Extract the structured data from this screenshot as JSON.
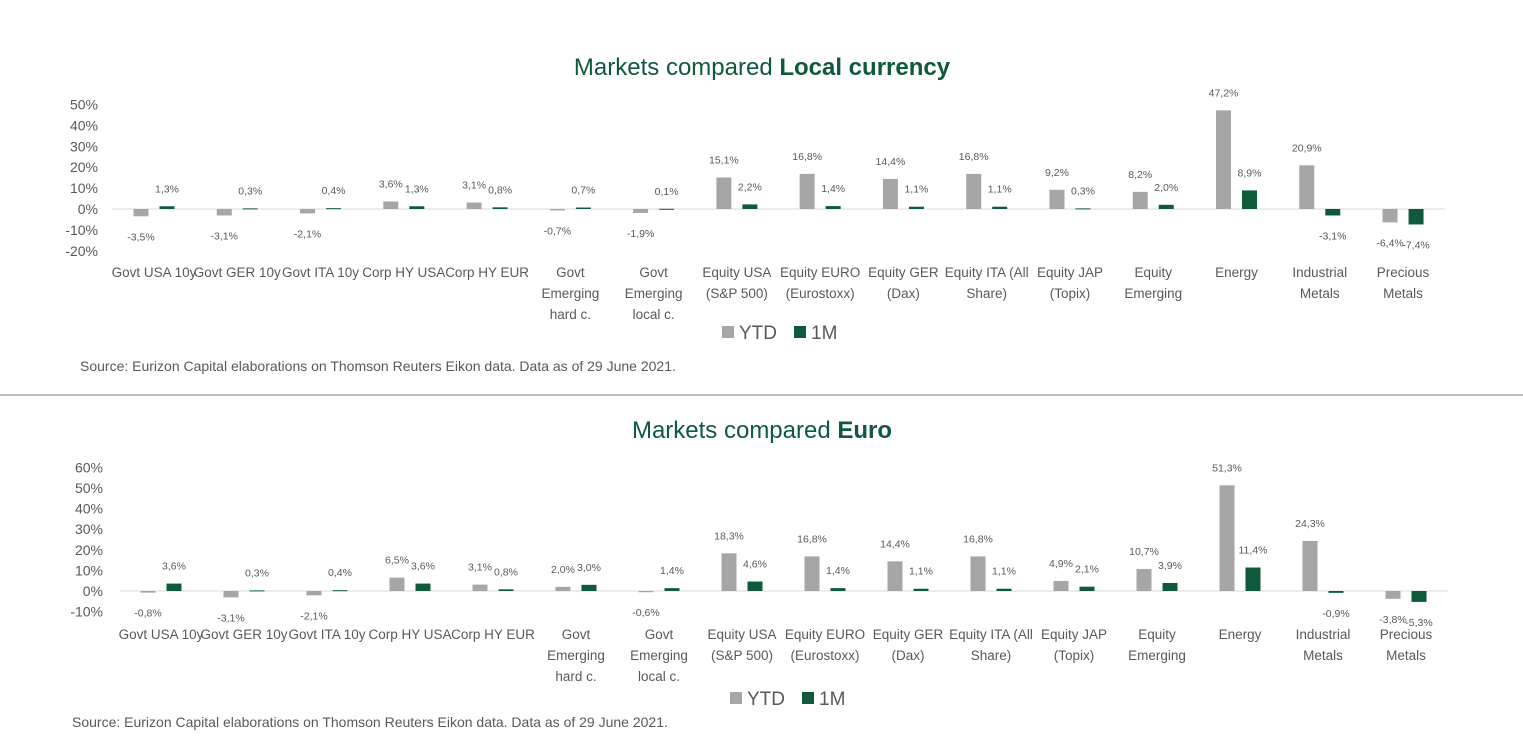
{
  "colors": {
    "ytd": "#a6a6a6",
    "m1": "#0e5a3a",
    "title": "#0e5a3a",
    "text": "#595959"
  },
  "chart_data": [
    {
      "type": "bar",
      "title_regular": "Markets compared ",
      "title_bold": "Local currency",
      "categories": [
        [
          "Govt USA 10y"
        ],
        [
          "Govt GER 10y"
        ],
        [
          "Govt ITA 10y"
        ],
        [
          "Corp HY USA"
        ],
        [
          "Corp HY EUR"
        ],
        [
          "Govt",
          "Emerging",
          "hard c."
        ],
        [
          "Govt",
          "Emerging",
          "local c."
        ],
        [
          "Equity USA",
          "(S&P 500)"
        ],
        [
          "Equity EURO",
          "(Eurostoxx)"
        ],
        [
          "Equity GER",
          "(Dax)"
        ],
        [
          "Equity ITA (All",
          "Share)"
        ],
        [
          "Equity JAP",
          "(Topix)"
        ],
        [
          "Equity",
          "Emerging"
        ],
        [
          "Energy"
        ],
        [
          "Industrial",
          "Metals"
        ],
        [
          "Precious",
          "Metals"
        ]
      ],
      "series": [
        {
          "name": "YTD",
          "values": [
            -3.5,
            -3.1,
            -2.1,
            3.6,
            3.1,
            -0.7,
            -1.9,
            15.1,
            16.8,
            14.4,
            16.8,
            9.2,
            8.2,
            47.2,
            20.9,
            -6.4
          ],
          "labels": [
            "-3,5%",
            "-3,1%",
            "-2,1%",
            "3,6%",
            "3,1%",
            "-0,7%",
            "-1,9%",
            "15,1%",
            "16,8%",
            "14,4%",
            "16,8%",
            "9,2%",
            "8,2%",
            "47,2%",
            "20,9%",
            "-6,4%"
          ]
        },
        {
          "name": "1M",
          "values": [
            1.3,
            0.3,
            0.4,
            1.3,
            0.8,
            0.7,
            0.1,
            2.2,
            1.4,
            1.1,
            1.1,
            0.3,
            2.0,
            8.9,
            -3.1,
            -7.4
          ],
          "labels": [
            "1,3%",
            "0,3%",
            "0,4%",
            "1,3%",
            "0,8%",
            "0,7%",
            "0,1%",
            "2,2%",
            "1,4%",
            "1,1%",
            "1,1%",
            "0,3%",
            "2,0%",
            "8,9%",
            "-3,1%",
            "-7,4%"
          ]
        }
      ],
      "ylim": [
        -20,
        50
      ],
      "yticks": [
        "-20%",
        "-10%",
        "0%",
        "10%",
        "20%",
        "30%",
        "40%",
        "50%"
      ],
      "legend": "bottom-center",
      "grid": false,
      "source": "Source: Eurizon Capital elaborations on Thomson Reuters Eikon data. Data as of 29 June 2021."
    },
    {
      "type": "bar",
      "title_regular": "Markets compared ",
      "title_bold": "Euro",
      "categories": [
        [
          "Govt USA 10y"
        ],
        [
          "Govt GER 10y"
        ],
        [
          "Govt ITA 10y"
        ],
        [
          "Corp HY USA"
        ],
        [
          "Corp HY EUR"
        ],
        [
          "Govt",
          "Emerging",
          "hard c."
        ],
        [
          "Govt",
          "Emerging",
          "local c."
        ],
        [
          "Equity USA",
          "(S&P 500)"
        ],
        [
          "Equity EURO",
          "(Eurostoxx)"
        ],
        [
          "Equity GER",
          "(Dax)"
        ],
        [
          "Equity ITA (All",
          "Share)"
        ],
        [
          "Equity JAP",
          "(Topix)"
        ],
        [
          "Equity",
          "Emerging"
        ],
        [
          "Energy"
        ],
        [
          "Industrial",
          "Metals"
        ],
        [
          "Precious",
          "Metals"
        ]
      ],
      "series": [
        {
          "name": "YTD",
          "values": [
            -0.8,
            -3.1,
            -2.1,
            6.5,
            3.1,
            2.0,
            -0.6,
            18.3,
            16.8,
            14.4,
            16.8,
            4.9,
            10.7,
            51.3,
            24.3,
            -3.8
          ],
          "labels": [
            "-0,8%",
            "-3,1%",
            "-2,1%",
            "6,5%",
            "3,1%",
            "2,0%",
            "-0,6%",
            "18,3%",
            "16,8%",
            "14,4%",
            "16,8%",
            "4,9%",
            "10,7%",
            "51,3%",
            "24,3%",
            "-3,8%"
          ]
        },
        {
          "name": "1M",
          "values": [
            3.6,
            0.3,
            0.4,
            3.6,
            0.8,
            3.0,
            1.4,
            4.6,
            1.4,
            1.1,
            1.1,
            2.1,
            3.9,
            11.4,
            -0.9,
            -5.3
          ],
          "labels": [
            "3,6%",
            "0,3%",
            "0,4%",
            "3,6%",
            "0,8%",
            "3,0%",
            "1,4%",
            "4,6%",
            "1,4%",
            "1,1%",
            "1,1%",
            "2,1%",
            "3,9%",
            "11,4%",
            "-0,9%",
            "-5,3%"
          ]
        }
      ],
      "ylim": [
        -10,
        60
      ],
      "yticks": [
        "-10%",
        "0%",
        "10%",
        "20%",
        "30%",
        "40%",
        "50%",
        "60%"
      ],
      "legend": "bottom-center",
      "grid": false,
      "source": "Source: Eurizon Capital elaborations on Thomson Reuters Eikon data. Data as of 29 June 2021."
    }
  ]
}
